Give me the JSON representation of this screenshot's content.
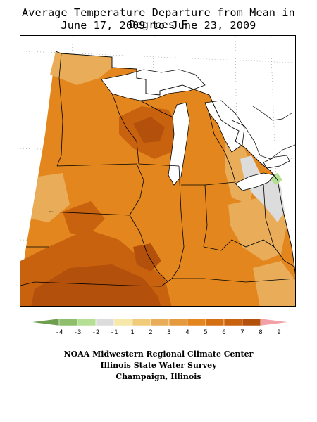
{
  "header": {
    "title": "Average Temperature Departure from Mean in Degrees F",
    "date_range": "June 17, 2009 to June 23, 2009"
  },
  "legend": {
    "labels": [
      "-4",
      "-3",
      "-2",
      "-1",
      "1",
      "2",
      "3",
      "4",
      "5",
      "6",
      "7",
      "8",
      "9"
    ],
    "bins": [
      {
        "color": "#6e9e4e"
      },
      {
        "color": "#8fbf6c"
      },
      {
        "color": "#b6df96"
      },
      {
        "color": "#dcdcdc"
      },
      {
        "color": "#f5e8a8"
      },
      {
        "color": "#f0cc7a"
      },
      {
        "color": "#e9ad5a"
      },
      {
        "color": "#e59a3e"
      },
      {
        "color": "#e3861e"
      },
      {
        "color": "#d66e12"
      },
      {
        "color": "#c8620f"
      },
      {
        "color": "#b2500c"
      },
      {
        "color": "#f4a0a8"
      }
    ]
  },
  "colors": {
    "base": "#e3861e",
    "warm": "#e9ad5a",
    "hot": "#c8620f",
    "hottest": "#b2500c",
    "near_normal": "#dcdcdc",
    "cool": "#b6df96",
    "water": "#ffffff",
    "borders": "#000000",
    "graticule": "#999999"
  },
  "credits": {
    "line1": "NOAA Midwestern Regional Climate Center",
    "line2": "Illinois State Water Survey",
    "line3": "Champaign, Illinois"
  }
}
